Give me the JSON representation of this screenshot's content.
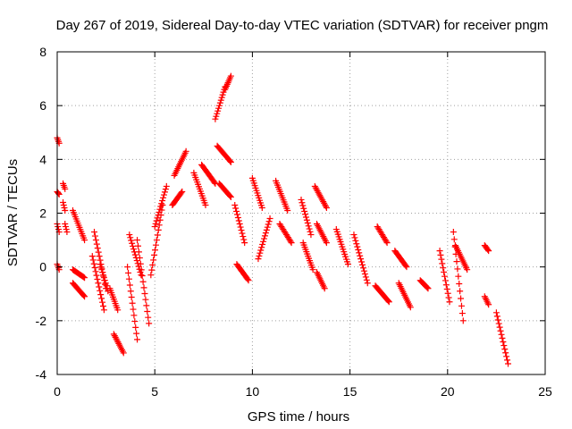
{
  "chart_data": {
    "type": "scatter",
    "title": "Day 267 of 2019, Sidereal Day-to-day VTEC variation (SDTVAR) for receiver pngm",
    "xlabel": "GPS time / hours",
    "ylabel": "SDTVAR / TECUs",
    "xlim": [
      0,
      25
    ],
    "ylim": [
      -4,
      8
    ],
    "xticks": [
      "0",
      "5",
      "10",
      "15",
      "20",
      "25"
    ],
    "yticks": [
      "-4",
      "-2",
      "0",
      "2",
      "4",
      "6",
      "8"
    ],
    "grid": true,
    "marker": "+",
    "color": "#ff0000",
    "segments": [
      {
        "x": [
          0.0,
          0.1
        ],
        "y": [
          4.8,
          4.6
        ]
      },
      {
        "x": [
          0.0,
          0.1
        ],
        "y": [
          2.8,
          2.7
        ]
      },
      {
        "x": [
          0.0,
          0.1
        ],
        "y": [
          1.6,
          1.3
        ]
      },
      {
        "x": [
          0.0,
          0.1
        ],
        "y": [
          0.1,
          -0.1
        ]
      },
      {
        "x": [
          0.3,
          0.4
        ],
        "y": [
          3.1,
          2.9
        ]
      },
      {
        "x": [
          0.3,
          0.4
        ],
        "y": [
          2.4,
          2.1
        ]
      },
      {
        "x": [
          0.4,
          0.5
        ],
        "y": [
          1.6,
          1.3
        ]
      },
      {
        "x": [
          0.8,
          1.4
        ],
        "y": [
          2.1,
          1.0
        ]
      },
      {
        "x": [
          0.8,
          1.4
        ],
        "y": [
          -0.1,
          -0.4
        ]
      },
      {
        "x": [
          0.8,
          1.4
        ],
        "y": [
          -0.6,
          -1.1
        ]
      },
      {
        "x": [
          1.8,
          2.4
        ],
        "y": [
          0.4,
          -1.6
        ]
      },
      {
        "x": [
          1.9,
          2.5
        ],
        "y": [
          1.3,
          -0.8
        ]
      },
      {
        "x": [
          2.2,
          2.6
        ],
        "y": [
          0.1,
          -0.9
        ]
      },
      {
        "x": [
          2.7,
          3.1
        ],
        "y": [
          -0.8,
          -1.6
        ]
      },
      {
        "x": [
          2.9,
          3.4
        ],
        "y": [
          -2.5,
          -3.2
        ]
      },
      {
        "x": [
          3.6,
          4.1
        ],
        "y": [
          0.0,
          -2.7
        ]
      },
      {
        "x": [
          3.7,
          4.3
        ],
        "y": [
          1.2,
          -0.3
        ]
      },
      {
        "x": [
          4.1,
          4.7
        ],
        "y": [
          1.0,
          -2.1
        ]
      },
      {
        "x": [
          4.8,
          5.4
        ],
        "y": [
          -0.3,
          2.3
        ]
      },
      {
        "x": [
          5.0,
          5.6
        ],
        "y": [
          1.5,
          3.0
        ]
      },
      {
        "x": [
          5.9,
          6.4
        ],
        "y": [
          2.3,
          2.8
        ]
      },
      {
        "x": [
          6.0,
          6.6
        ],
        "y": [
          3.4,
          4.3
        ]
      },
      {
        "x": [
          7.0,
          7.6
        ],
        "y": [
          3.5,
          2.3
        ]
      },
      {
        "x": [
          7.4,
          8.1
        ],
        "y": [
          3.8,
          3.1
        ]
      },
      {
        "x": [
          8.1,
          8.6
        ],
        "y": [
          5.5,
          6.7
        ]
      },
      {
        "x": [
          8.6,
          8.9
        ],
        "y": [
          6.6,
          7.1
        ]
      },
      {
        "x": [
          8.2,
          8.9
        ],
        "y": [
          4.5,
          3.9
        ]
      },
      {
        "x": [
          8.3,
          8.9
        ],
        "y": [
          3.1,
          2.6
        ]
      },
      {
        "x": [
          9.1,
          9.6
        ],
        "y": [
          2.3,
          0.9
        ]
      },
      {
        "x": [
          9.2,
          9.8
        ],
        "y": [
          0.1,
          -0.5
        ]
      },
      {
        "x": [
          10.0,
          10.5
        ],
        "y": [
          3.3,
          2.2
        ]
      },
      {
        "x": [
          10.3,
          10.9
        ],
        "y": [
          0.3,
          1.8
        ]
      },
      {
        "x": [
          11.2,
          11.8
        ],
        "y": [
          3.2,
          2.1
        ]
      },
      {
        "x": [
          11.4,
          12.0
        ],
        "y": [
          1.6,
          0.9
        ]
      },
      {
        "x": [
          12.5,
          13.0
        ],
        "y": [
          2.5,
          1.2
        ]
      },
      {
        "x": [
          12.6,
          13.1
        ],
        "y": [
          0.9,
          -0.1
        ]
      },
      {
        "x": [
          13.2,
          13.8
        ],
        "y": [
          3.0,
          2.2
        ]
      },
      {
        "x": [
          13.3,
          13.8
        ],
        "y": [
          1.6,
          0.9
        ]
      },
      {
        "x": [
          13.3,
          13.7
        ],
        "y": [
          -0.2,
          -0.8
        ]
      },
      {
        "x": [
          14.3,
          14.9
        ],
        "y": [
          1.4,
          0.1
        ]
      },
      {
        "x": [
          15.2,
          15.9
        ],
        "y": [
          1.2,
          -0.6
        ]
      },
      {
        "x": [
          16.4,
          16.9
        ],
        "y": [
          1.5,
          0.9
        ]
      },
      {
        "x": [
          16.3,
          17.0
        ],
        "y": [
          -0.7,
          -1.3
        ]
      },
      {
        "x": [
          17.3,
          17.9
        ],
        "y": [
          0.6,
          0.0
        ]
      },
      {
        "x": [
          17.5,
          18.1
        ],
        "y": [
          -0.6,
          -1.5
        ]
      },
      {
        "x": [
          18.6,
          19.0
        ],
        "y": [
          -0.5,
          -0.8
        ]
      },
      {
        "x": [
          19.6,
          20.1
        ],
        "y": [
          0.6,
          -1.3
        ]
      },
      {
        "x": [
          20.3,
          20.8
        ],
        "y": [
          1.3,
          -2.0
        ]
      },
      {
        "x": [
          20.4,
          21.0
        ],
        "y": [
          0.8,
          -0.1
        ]
      },
      {
        "x": [
          21.9,
          22.1
        ],
        "y": [
          0.8,
          0.6
        ]
      },
      {
        "x": [
          21.9,
          22.1
        ],
        "y": [
          -1.1,
          -1.4
        ]
      },
      {
        "x": [
          22.5,
          23.1
        ],
        "y": [
          -1.7,
          -3.6
        ]
      }
    ]
  }
}
